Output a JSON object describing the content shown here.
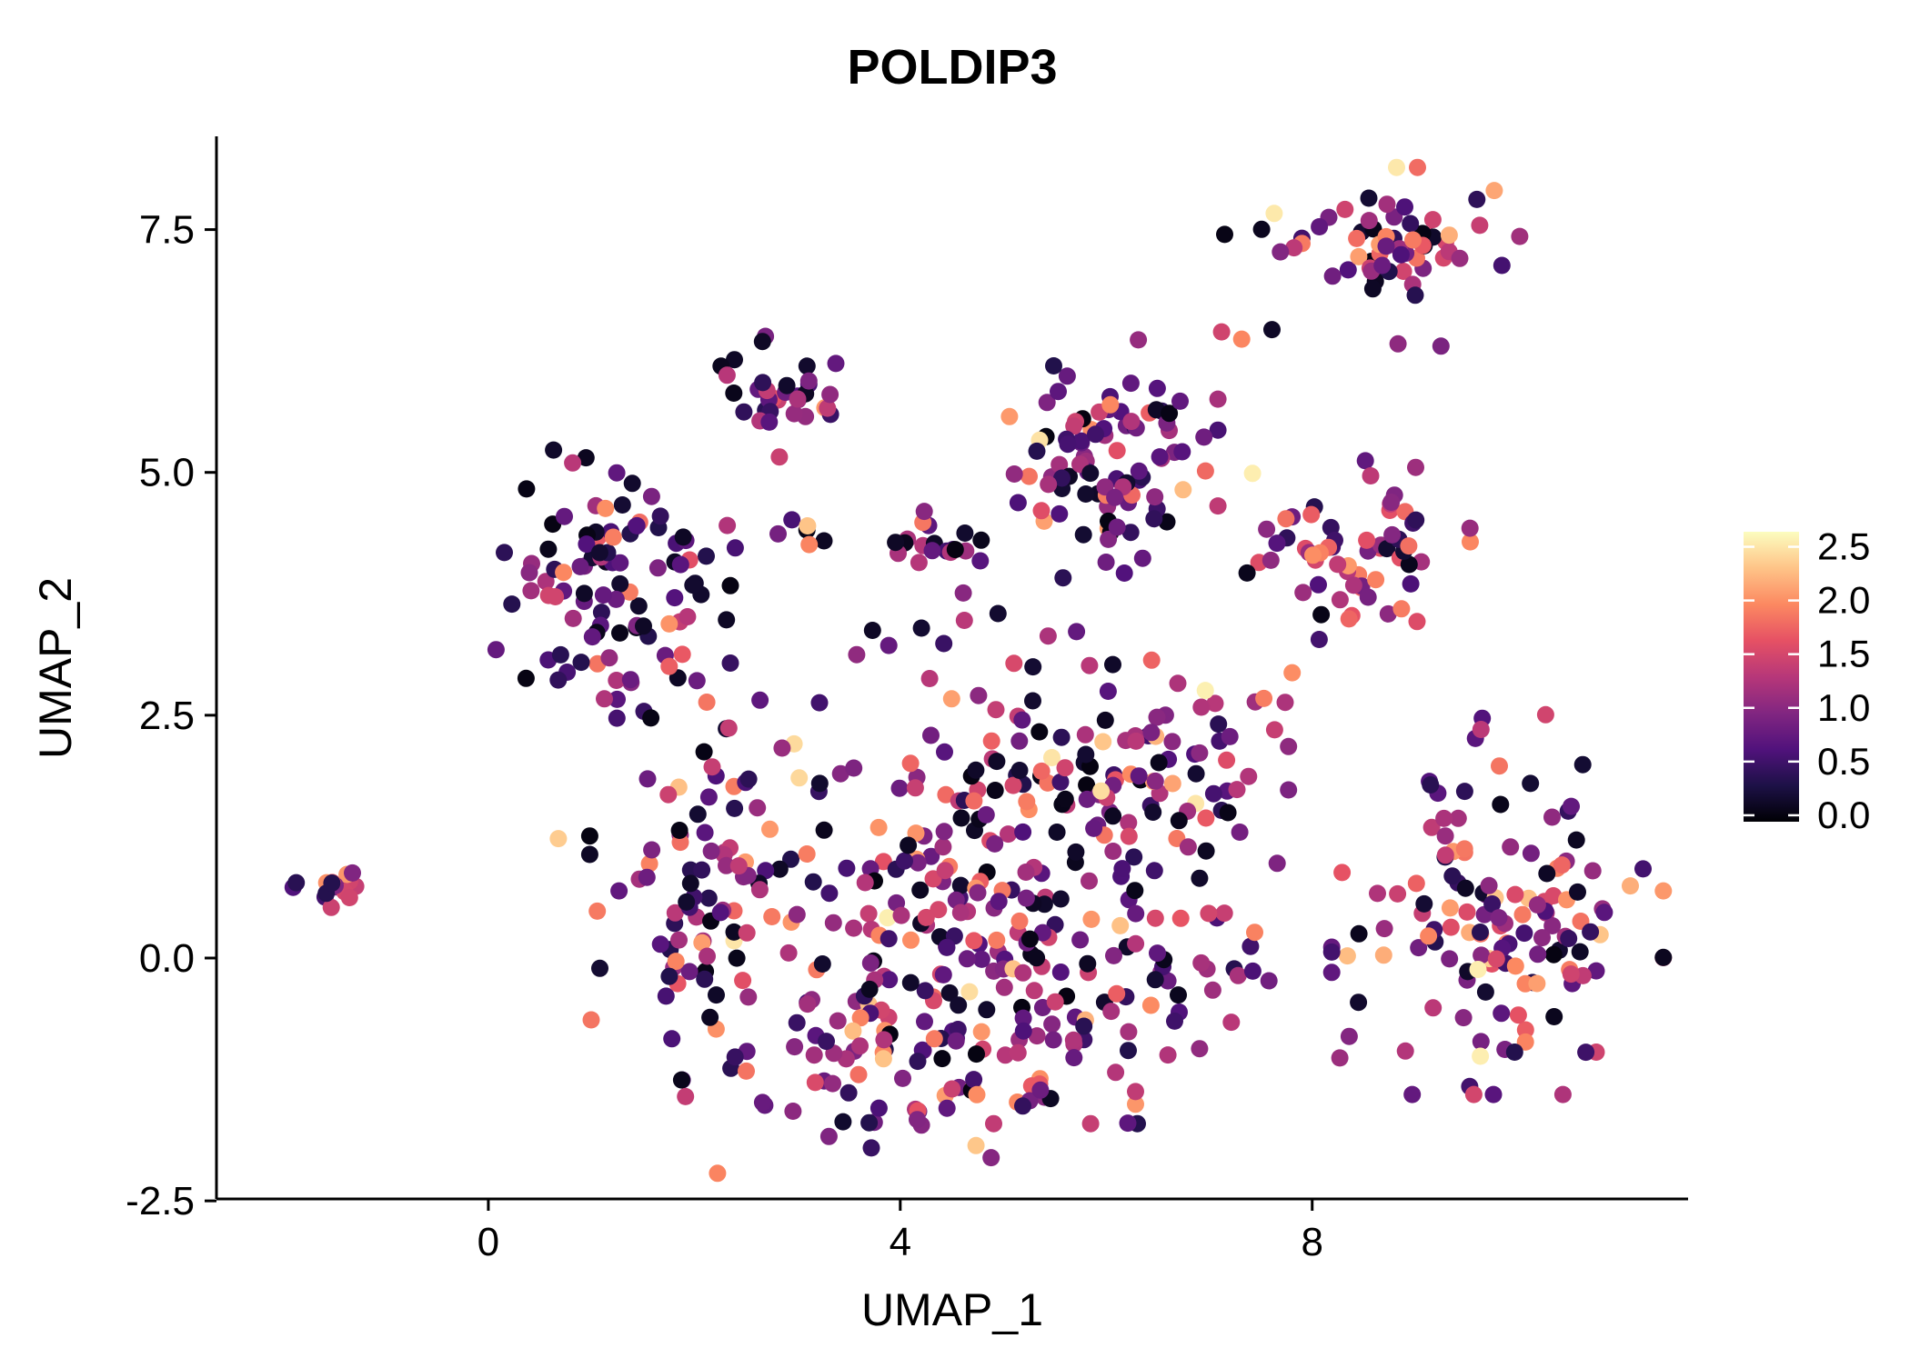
{
  "chart_data": {
    "type": "scatter",
    "title": "POLDIP3",
    "xlabel": "UMAP_1",
    "ylabel": "UMAP_2",
    "xlim": [
      -2.64,
      11.65
    ],
    "ylim": [
      -2.48,
      8.46
    ],
    "x_ticks": [
      0,
      4,
      8
    ],
    "x_tick_labels": [
      "0",
      "4",
      "8"
    ],
    "y_ticks": [
      -2.5,
      0.0,
      2.5,
      5.0,
      7.5
    ],
    "y_tick_labels": [
      "-2.5",
      "0.0",
      "2.5",
      "5.0",
      "7.5"
    ],
    "grid": false,
    "background_color": "#ffffff",
    "axis_color": "#000000",
    "point_radius": 9.5,
    "legend": {
      "position": "right",
      "tick_values": [
        0.0,
        0.5,
        1.0,
        1.5,
        2.0,
        2.5
      ],
      "tick_labels": [
        "0.0",
        "0.5",
        "1.0",
        "1.5",
        "2.0",
        "2.5"
      ],
      "vmin": -0.06,
      "vmax": 2.64
    },
    "colormap_name": "magma",
    "colormap": [
      {
        "t": 0.0,
        "color": "#000004"
      },
      {
        "t": 0.125,
        "color": "#1d1147"
      },
      {
        "t": 0.25,
        "color": "#51127c"
      },
      {
        "t": 0.375,
        "color": "#822681"
      },
      {
        "t": 0.5,
        "color": "#b73779"
      },
      {
        "t": 0.625,
        "color": "#e65164"
      },
      {
        "t": 0.75,
        "color": "#fc8961"
      },
      {
        "t": 0.875,
        "color": "#fec488"
      },
      {
        "t": 1.0,
        "color": "#fcfdbf"
      }
    ],
    "seed": 7,
    "value_bins": [
      [
        0.0,
        0.18
      ],
      [
        0.3,
        0.9
      ],
      [
        0.9,
        1.5
      ],
      [
        1.5,
        2.1
      ],
      [
        2.1,
        2.6
      ]
    ],
    "default_weights": [
      0.18,
      0.3,
      0.32,
      0.16,
      0.04
    ],
    "clusters": [
      {
        "name": "top-right",
        "cx": 8.75,
        "cy": 7.45,
        "sx": 0.55,
        "sy": 0.3,
        "n": 62,
        "weights": [
          0.14,
          0.28,
          0.3,
          0.22,
          0.06
        ]
      },
      {
        "name": "top-right-strays",
        "cx": 8.5,
        "cy": 6.55,
        "sx": 0.6,
        "sy": 0.3,
        "n": 4,
        "weights": [
          0.18,
          0.3,
          0.32,
          0.16,
          0.04
        ]
      },
      {
        "name": "top-mid",
        "cx": 2.95,
        "cy": 5.78,
        "sx": 0.3,
        "sy": 0.27,
        "n": 34,
        "weights": [
          0.2,
          0.45,
          0.27,
          0.08,
          0.0
        ]
      },
      {
        "name": "upper-mid",
        "cx": 6.05,
        "cy": 5.1,
        "sx": 0.45,
        "sy": 0.55,
        "n": 95,
        "weights": [
          0.12,
          0.45,
          0.3,
          0.11,
          0.02
        ]
      },
      {
        "name": "upper-right",
        "cx": 8.5,
        "cy": 4.2,
        "sx": 0.45,
        "sy": 0.4,
        "n": 58,
        "weights": [
          0.08,
          0.25,
          0.34,
          0.28,
          0.05
        ]
      },
      {
        "name": "left",
        "cx": 1.2,
        "cy": 3.85,
        "sx": 0.5,
        "sy": 0.6,
        "n": 100,
        "weights": [
          0.3,
          0.3,
          0.26,
          0.13,
          0.01
        ]
      },
      {
        "name": "far-left",
        "cx": -1.5,
        "cy": 0.68,
        "sx": 0.2,
        "sy": 0.11,
        "n": 16,
        "weights": [
          0.0,
          0.12,
          0.73,
          0.15,
          0.0
        ]
      },
      {
        "name": "mid-small",
        "cx": 4.35,
        "cy": 4.3,
        "sx": 0.3,
        "sy": 0.13,
        "n": 18,
        "weights": [
          0.1,
          0.4,
          0.35,
          0.15,
          0.0
        ]
      },
      {
        "name": "scatter-row",
        "cx": 2.9,
        "cy": 4.33,
        "sx": 0.55,
        "sy": 0.1,
        "n": 9,
        "weights": [
          0.18,
          0.3,
          0.32,
          0.16,
          0.04
        ]
      },
      {
        "name": "center-main",
        "cx": 4.8,
        "cy": 0.25,
        "sx": 1.05,
        "sy": 0.85,
        "n": 200,
        "weights": [
          0.17,
          0.3,
          0.3,
          0.18,
          0.05
        ]
      },
      {
        "name": "center-left",
        "cx": 2.25,
        "cy": 0.7,
        "sx": 0.55,
        "sy": 0.85,
        "n": 90,
        "weights": [
          0.18,
          0.32,
          0.3,
          0.18,
          0.02
        ]
      },
      {
        "name": "center-top",
        "cx": 5.7,
        "cy": 1.85,
        "sx": 0.9,
        "sy": 0.45,
        "n": 70,
        "weights": [
          0.18,
          0.3,
          0.32,
          0.16,
          0.04
        ]
      },
      {
        "name": "center-bottom",
        "cx": 4.1,
        "cy": -1.25,
        "sx": 0.95,
        "sy": 0.42,
        "n": 70,
        "weights": [
          0.2,
          0.35,
          0.28,
          0.15,
          0.02
        ]
      },
      {
        "name": "center-right-top",
        "cx": 6.75,
        "cy": 2.25,
        "sx": 0.5,
        "sy": 0.5,
        "n": 40,
        "weights": [
          0.18,
          0.3,
          0.32,
          0.16,
          0.04
        ]
      },
      {
        "name": "center-right",
        "cx": 7.0,
        "cy": 0.35,
        "sx": 0.4,
        "sy": 0.6,
        "n": 25,
        "weights": [
          0.18,
          0.3,
          0.32,
          0.16,
          0.04
        ]
      },
      {
        "name": "right",
        "cx": 9.8,
        "cy": 0.55,
        "sx": 0.7,
        "sy": 0.85,
        "n": 140,
        "weights": [
          0.14,
          0.28,
          0.3,
          0.22,
          0.06
        ]
      },
      {
        "name": "mid-scatter",
        "cx": 4.4,
        "cy": 3.15,
        "sx": 0.9,
        "sy": 0.45,
        "n": 16,
        "weights": [
          0.18,
          0.3,
          0.32,
          0.16,
          0.04
        ]
      },
      {
        "name": "bridge-right",
        "cx": 7.5,
        "cy": 4.3,
        "sx": 0.3,
        "sy": 0.2,
        "n": 5,
        "weights": [
          0.18,
          0.3,
          0.32,
          0.16,
          0.04
        ]
      }
    ],
    "highlight_points": [
      {
        "x": 7.42,
        "y": 4.99,
        "v": 2.55
      },
      {
        "x": 7.15,
        "y": 7.45,
        "v": 0.03
      },
      {
        "x": 5.95,
        "y": 1.72,
        "v": 2.45
      },
      {
        "x": 0.68,
        "y": 1.23,
        "v": 2.35
      },
      {
        "x": 3.1,
        "y": 4.45,
        "v": 2.3
      },
      {
        "x": 9.25,
        "y": 6.3,
        "v": 0.9
      }
    ]
  }
}
